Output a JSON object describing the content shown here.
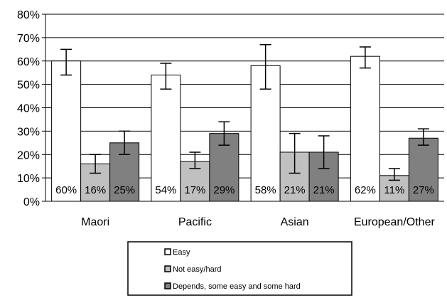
{
  "chart_data": {
    "type": "bar",
    "categories": [
      "Maori",
      "Pacific",
      "Asian",
      "European/Other"
    ],
    "ylim": [
      0,
      80
    ],
    "yticks": [
      "0%",
      "10%",
      "20%",
      "30%",
      "40%",
      "50%",
      "60%",
      "70%",
      "80%"
    ],
    "grid": true,
    "legend_position": "bottom",
    "series": [
      {
        "name": "Easy",
        "color": "#ffffff",
        "values": [
          60,
          54,
          58,
          62
        ],
        "labels": [
          "60%",
          "54%",
          "58%",
          "62%"
        ],
        "error_low": [
          54,
          48,
          48,
          57
        ],
        "error_high": [
          65,
          59,
          67,
          66
        ]
      },
      {
        "name": "Not easy/hard",
        "color": "#c0c0c0",
        "values": [
          16,
          17,
          21,
          11
        ],
        "labels": [
          "16%",
          "17%",
          "21%",
          "11%"
        ],
        "error_low": [
          12,
          14,
          12,
          9
        ],
        "error_high": [
          20,
          21,
          29,
          14
        ]
      },
      {
        "name": "Depends, some easy and some hard",
        "color": "#808080",
        "values": [
          25,
          29,
          21,
          27
        ],
        "labels": [
          "25%",
          "29%",
          "21%",
          "27%"
        ],
        "error_low": [
          20,
          24,
          14,
          24
        ],
        "error_high": [
          30,
          34,
          28,
          31
        ]
      }
    ]
  }
}
